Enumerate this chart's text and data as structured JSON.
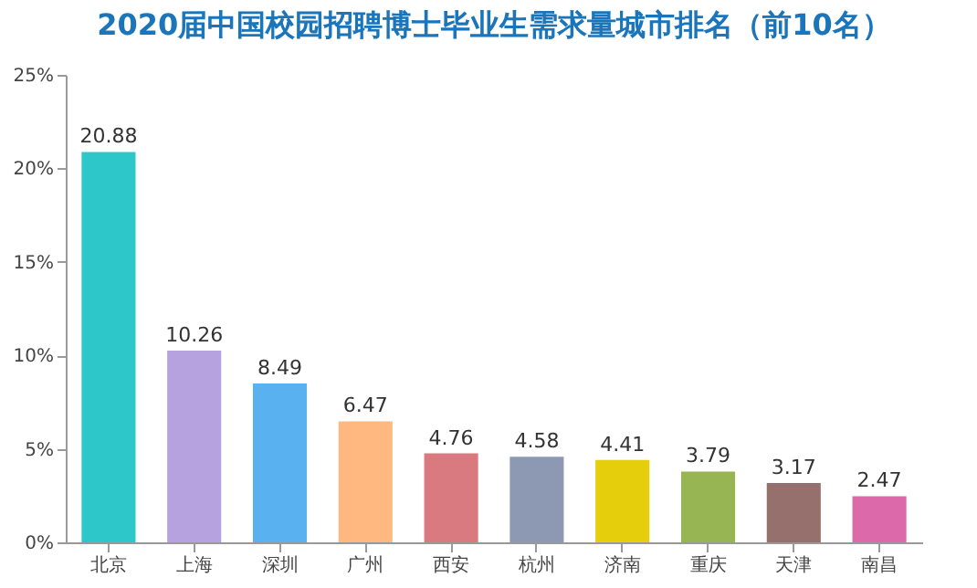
{
  "chart_data": {
    "type": "bar",
    "title": "2020届中国校园招聘博士毕业生需求量城市排名（前10名）",
    "categories": [
      "北京",
      "上海",
      "深圳",
      "广州",
      "西安",
      "杭州",
      "济南",
      "重庆",
      "天津",
      "南昌"
    ],
    "values": [
      20.88,
      10.26,
      8.49,
      6.47,
      4.76,
      4.58,
      4.41,
      3.79,
      3.17,
      2.47
    ],
    "colors": [
      "#2ec7c9",
      "#b6a2de",
      "#5ab1ef",
      "#ffb980",
      "#d87a80",
      "#8d98b3",
      "#e5cf0d",
      "#97b552",
      "#95706d",
      "#dc69aa"
    ],
    "ylim": [
      0,
      25
    ],
    "yticks": [
      {
        "value": 0,
        "label": "0%"
      },
      {
        "value": 5,
        "label": "5%"
      },
      {
        "value": 10,
        "label": "10%"
      },
      {
        "value": 15,
        "label": "15%"
      },
      {
        "value": 20,
        "label": "20%"
      },
      {
        "value": 25,
        "label": "25%"
      }
    ],
    "data_labels": true,
    "grid": false,
    "legend": false
  }
}
